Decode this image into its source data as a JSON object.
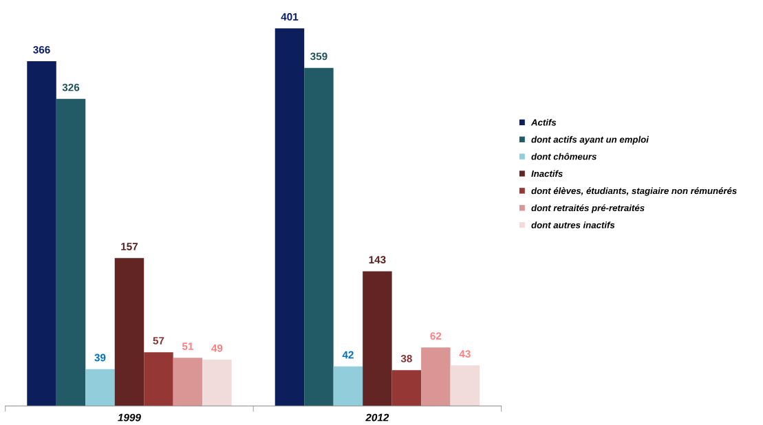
{
  "chart_data": {
    "type": "bar",
    "categories": [
      "1999",
      "2012"
    ],
    "series": [
      {
        "name": "Actifs",
        "color": "#0c1f5c",
        "values": [
          366,
          401
        ]
      },
      {
        "name": "dont actifs ayant un emploi",
        "color": "#225a66",
        "values": [
          326,
          359
        ]
      },
      {
        "name": "dont chômeurs",
        "color": "#92cddc",
        "values": [
          39,
          42
        ]
      },
      {
        "name": "Inactifs",
        "color": "#632523",
        "values": [
          157,
          143
        ]
      },
      {
        "name": "dont élèves, étudiants, stagiaire non rémunérés",
        "color": "#953735",
        "values": [
          57,
          38
        ]
      },
      {
        "name": "dont retraités pré-retraités",
        "color": "#d99694",
        "values": [
          51,
          62
        ]
      },
      {
        "name": "dont autres inactifs",
        "color": "#f2dcdb",
        "values": [
          49,
          43
        ]
      }
    ],
    "data_labels": true,
    "legend": "right",
    "grid": false
  }
}
